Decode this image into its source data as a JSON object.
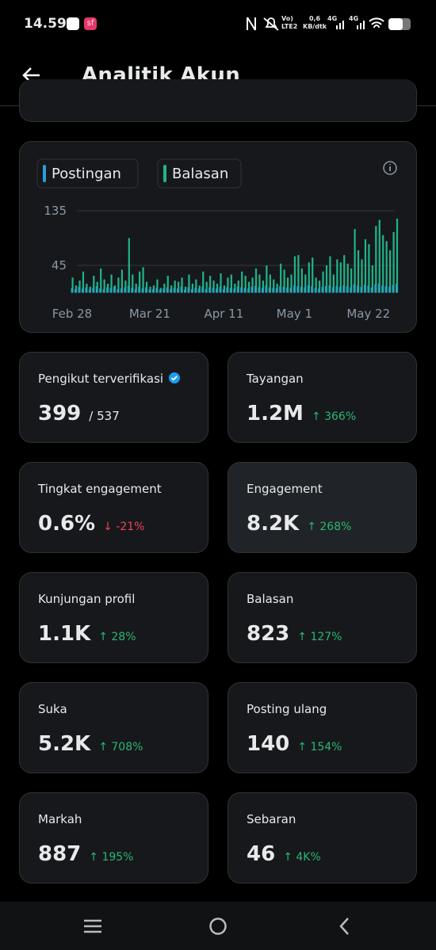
{
  "status_bar": {
    "time": "14.59",
    "app_badge": "sf",
    "volte": "Vo)",
    "lte": "LTE2",
    "speed": "0,6",
    "speed_unit": "KB/dtk",
    "net1": "4G",
    "net2": "4G"
  },
  "header": {
    "title": "Analitik Akun"
  },
  "chart_data": {
    "type": "bar",
    "categories": [
      "Feb 28",
      null,
      null,
      null,
      null,
      null,
      null,
      null,
      null,
      null,
      null,
      null,
      null,
      null,
      null,
      null,
      null,
      null,
      null,
      null,
      null,
      null,
      "Mar 21",
      null,
      null,
      null,
      null,
      null,
      null,
      null,
      null,
      null,
      null,
      null,
      null,
      null,
      null,
      null,
      null,
      null,
      null,
      null,
      null,
      "Apr 11",
      null,
      null,
      null,
      null,
      null,
      null,
      null,
      null,
      null,
      null,
      null,
      null,
      null,
      null,
      null,
      null,
      null,
      null,
      null,
      "May 1",
      null,
      null,
      null,
      null,
      null,
      null,
      null,
      null,
      null,
      null,
      null,
      null,
      null,
      null,
      null,
      null,
      null,
      null,
      null,
      null,
      "May 22",
      null,
      null,
      null,
      null,
      null,
      null,
      null,
      null
    ],
    "series": [
      {
        "name": "Balasan",
        "color": "#1fb58a",
        "values": [
          25,
          12,
          20,
          35,
          15,
          10,
          28,
          18,
          40,
          22,
          15,
          30,
          12,
          25,
          38,
          20,
          90,
          30,
          15,
          35,
          42,
          18,
          10,
          12,
          22,
          8,
          15,
          28,
          12,
          20,
          18,
          25,
          10,
          30,
          15,
          22,
          12,
          35,
          18,
          28,
          20,
          15,
          32,
          12,
          25,
          30,
          15,
          20,
          35,
          28,
          18,
          25,
          40,
          30,
          20,
          45,
          30,
          22,
          15,
          48,
          38,
          25,
          30,
          60,
          62,
          40,
          30,
          50,
          58,
          25,
          20,
          35,
          45,
          60,
          30,
          55,
          50,
          62,
          48,
          40,
          105,
          70,
          55,
          88,
          80,
          45,
          110,
          120,
          95,
          85,
          70,
          100,
          122
        ]
      },
      {
        "name": "Postingan",
        "color": "#2a9fd8",
        "values": [
          8,
          6,
          10,
          7,
          9,
          5,
          8,
          11,
          7,
          6,
          9,
          8,
          10,
          6,
          7,
          9,
          12,
          8,
          6,
          10,
          7,
          9,
          5,
          6,
          8,
          5,
          7,
          9,
          6,
          8,
          7,
          10,
          5,
          9,
          6,
          8,
          7,
          10,
          6,
          9,
          8,
          7,
          10,
          6,
          9,
          8,
          7,
          10,
          9,
          8,
          7,
          10,
          11,
          9,
          8,
          12,
          9,
          8,
          7,
          11,
          10,
          9,
          8,
          12,
          11,
          10,
          9,
          12,
          11,
          8,
          7,
          10,
          11,
          12,
          9,
          11,
          10,
          12,
          11,
          9,
          14,
          12,
          10,
          13,
          12,
          9,
          14,
          15,
          12,
          11,
          10,
          13,
          15
        ]
      }
    ],
    "ylim": [
      0,
      135
    ],
    "yticks": [
      45,
      135
    ],
    "grid": true,
    "legend": "top-left"
  },
  "stats": [
    {
      "label": "Pengikut terverifikasi",
      "verified": true,
      "value": "399",
      "total": "/ 537"
    },
    {
      "label": "Tayangan",
      "value": "1.2M",
      "change": "↑ 366%",
      "trend": "up"
    },
    {
      "label": "Tingkat engagement",
      "value": "0.6%",
      "change": "↓ -21%",
      "trend": "down"
    },
    {
      "label": "Engagement",
      "value": "8.2K",
      "change": "↑ 268%",
      "trend": "up",
      "highlighted": true
    },
    {
      "label": "Kunjungan profil",
      "value": "1.1K",
      "change": "↑ 28%",
      "trend": "up"
    },
    {
      "label": "Balasan",
      "value": "823",
      "change": "↑ 127%",
      "trend": "up"
    },
    {
      "label": "Suka",
      "value": "5.2K",
      "change": "↑ 708%",
      "trend": "up"
    },
    {
      "label": "Posting ulang",
      "value": "140",
      "change": "↑ 154%",
      "trend": "up"
    },
    {
      "label": "Markah",
      "value": "887",
      "change": "↑ 195%",
      "trend": "up"
    },
    {
      "label": "Sebaran",
      "value": "46",
      "change": "↑ 4K%",
      "trend": "up"
    }
  ]
}
